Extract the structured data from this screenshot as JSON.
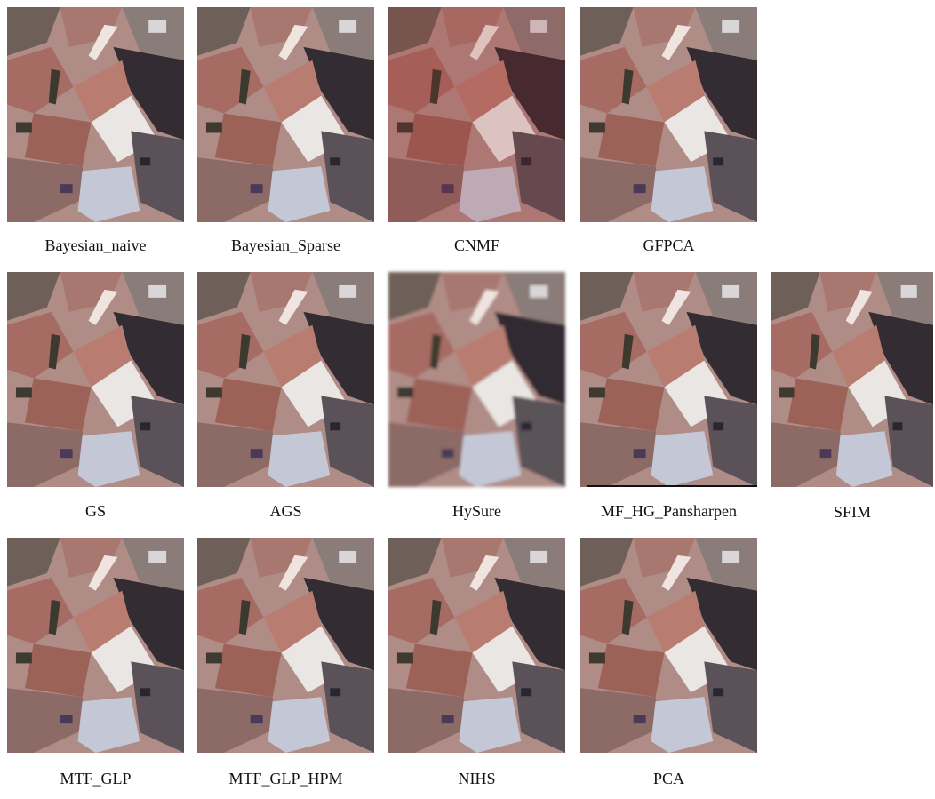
{
  "rows": [
    [
      "Bayesian_naive",
      "Bayesian_Sparse",
      "CNMF",
      "GFPCA"
    ],
    [
      "GS",
      "AGS",
      "HySure",
      "MF_HG_Pansharpen",
      "SFIM"
    ],
    [
      "MTF_GLP",
      "MTF_GLP_HPM",
      "NIHS",
      "PCA"
    ]
  ]
}
